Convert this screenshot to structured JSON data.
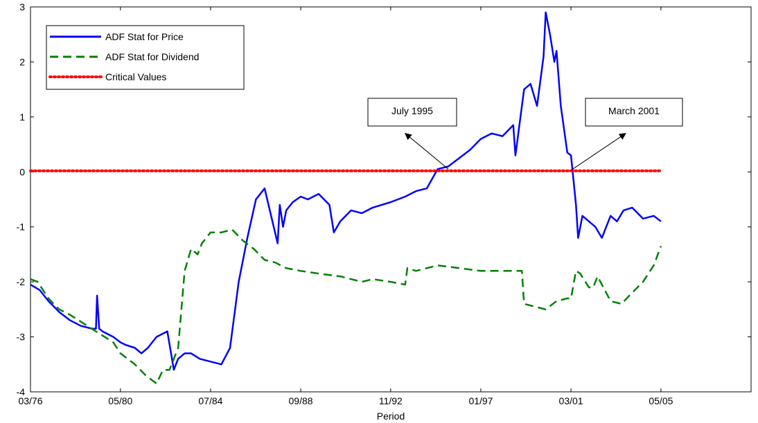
{
  "chart_data": {
    "type": "line",
    "xlabel": "Period",
    "ylabel": "",
    "xlim": [
      1976.17,
      2009.5
    ],
    "ylim": [
      -4,
      3
    ],
    "x_ticks": [
      {
        "x": 1976.17,
        "label": "03/76"
      },
      {
        "x": 1980.33,
        "label": "05/80"
      },
      {
        "x": 1984.5,
        "label": "07/84"
      },
      {
        "x": 1988.67,
        "label": "09/88"
      },
      {
        "x": 1992.83,
        "label": "11/92"
      },
      {
        "x": 1997.0,
        "label": "01/97"
      },
      {
        "x": 2001.17,
        "label": "03/01"
      },
      {
        "x": 2005.33,
        "label": "05/05"
      }
    ],
    "y_ticks": [
      3,
      2,
      1,
      0,
      -1,
      -2,
      -3,
      -4
    ],
    "legend": {
      "placement": "top-left",
      "entries": [
        {
          "label": "ADF Stat for Price",
          "color": "#0000ff",
          "style": "solid"
        },
        {
          "label": "ADF Stat for Dividend",
          "color": "#008000",
          "style": "dashed"
        },
        {
          "label": "Critical Values",
          "color": "#ff0000",
          "style": "dotted"
        }
      ]
    },
    "series": [
      {
        "name": "ADF Stat for Price",
        "color": "#0000ff",
        "style": "solid",
        "x": [
          1976.17,
          1976.6,
          1977.0,
          1977.5,
          1978.0,
          1978.5,
          1979.0,
          1979.2,
          1979.25,
          1979.35,
          1979.5,
          1980.0,
          1980.33,
          1980.6,
          1981.0,
          1981.3,
          1981.6,
          1982.0,
          1982.5,
          1982.8,
          1983.0,
          1983.3,
          1983.6,
          1984.0,
          1984.5,
          1985.0,
          1985.4,
          1985.8,
          1986.2,
          1986.6,
          1987.0,
          1987.3,
          1987.6,
          1987.7,
          1987.85,
          1988.0,
          1988.3,
          1988.67,
          1989.0,
          1989.5,
          1990.0,
          1990.2,
          1990.5,
          1991.0,
          1991.5,
          1992.0,
          1992.83,
          1993.5,
          1994.0,
          1994.5,
          1995.0,
          1995.5,
          1996.0,
          1996.5,
          1997.0,
          1997.5,
          1998.0,
          1998.5,
          1998.6,
          1999.0,
          1999.3,
          1999.6,
          1999.9,
          2000.0,
          2000.2,
          2000.4,
          2000.5,
          2000.7,
          2001.0,
          2001.17,
          2001.4,
          2001.5,
          2001.7,
          2002.0,
          2002.3,
          2002.6,
          2003.0,
          2003.3,
          2003.6,
          2004.0,
          2004.5,
          2005.0,
          2005.33
        ],
        "values": [
          -2.05,
          -2.15,
          -2.35,
          -2.55,
          -2.7,
          -2.8,
          -2.85,
          -2.85,
          -2.25,
          -2.85,
          -2.9,
          -3.0,
          -3.1,
          -3.15,
          -3.2,
          -3.3,
          -3.2,
          -3.0,
          -2.9,
          -3.6,
          -3.4,
          -3.3,
          -3.3,
          -3.4,
          -3.45,
          -3.5,
          -3.2,
          -2.0,
          -1.2,
          -0.5,
          -0.3,
          -0.8,
          -1.3,
          -0.6,
          -1.0,
          -0.7,
          -0.55,
          -0.45,
          -0.5,
          -0.4,
          -0.6,
          -1.1,
          -0.9,
          -0.7,
          -0.75,
          -0.65,
          -0.55,
          -0.45,
          -0.35,
          -0.3,
          0.05,
          0.1,
          0.25,
          0.4,
          0.6,
          0.7,
          0.65,
          0.85,
          0.3,
          1.5,
          1.6,
          1.2,
          2.1,
          2.9,
          2.5,
          2.0,
          2.2,
          1.2,
          0.35,
          0.3,
          -0.6,
          -1.2,
          -0.8,
          -0.9,
          -1.0,
          -1.2,
          -0.8,
          -0.9,
          -0.7,
          -0.65,
          -0.85,
          -0.8,
          -0.9
        ]
      },
      {
        "name": "ADF Stat for Dividend",
        "color": "#008000",
        "style": "dashed",
        "x": [
          1976.17,
          1976.5,
          1977.0,
          1977.5,
          1978.0,
          1979.0,
          1980.0,
          1980.33,
          1981.0,
          1981.5,
          1982.0,
          1982.3,
          1982.6,
          1983.0,
          1983.3,
          1983.6,
          1983.9,
          1984.1,
          1984.5,
          1985.0,
          1985.5,
          1986.0,
          1986.5,
          1987.0,
          1987.5,
          1988.0,
          1988.67,
          1989.5,
          1990.5,
          1991.5,
          1992.0,
          1992.83,
          1993.5,
          1993.6,
          1994.0,
          1994.5,
          1995.0,
          1996.0,
          1997.0,
          1998.0,
          1998.9,
          1999.0,
          1999.5,
          2000.0,
          2000.5,
          2001.0,
          2001.17,
          2001.4,
          2001.6,
          2002.0,
          2002.2,
          2002.4,
          2003.0,
          2003.5,
          2004.0,
          2004.5,
          2005.0,
          2005.33
        ],
        "values": [
          -1.95,
          -2.0,
          -2.3,
          -2.5,
          -2.6,
          -2.85,
          -3.1,
          -3.3,
          -3.5,
          -3.7,
          -3.85,
          -3.6,
          -3.6,
          -3.2,
          -1.8,
          -1.4,
          -1.5,
          -1.3,
          -1.1,
          -1.1,
          -1.05,
          -1.25,
          -1.4,
          -1.6,
          -1.65,
          -1.75,
          -1.8,
          -1.85,
          -1.9,
          -2.0,
          -1.95,
          -2.0,
          -2.05,
          -1.75,
          -1.8,
          -1.75,
          -1.7,
          -1.75,
          -1.8,
          -1.8,
          -1.8,
          -2.4,
          -2.45,
          -2.5,
          -2.35,
          -2.3,
          -2.3,
          -1.8,
          -1.85,
          -2.1,
          -2.1,
          -1.9,
          -2.35,
          -2.4,
          -2.2,
          -2.0,
          -1.7,
          -1.35
        ]
      },
      {
        "name": "Critical Values",
        "color": "#ff0000",
        "style": "dotted",
        "x": [
          1976.17,
          2005.33
        ],
        "values": [
          0.02,
          0.02
        ]
      }
    ],
    "annotations": [
      {
        "text": "July 1995",
        "point_x": 1995.5,
        "point_y": 0.05,
        "tip_x": 1993.5,
        "tip_y": 0.7
      },
      {
        "text": "March 2001",
        "point_x": 2001.17,
        "point_y": 0.03,
        "tip_x": 2003.7,
        "tip_y": 0.7
      }
    ],
    "grid": false
  }
}
